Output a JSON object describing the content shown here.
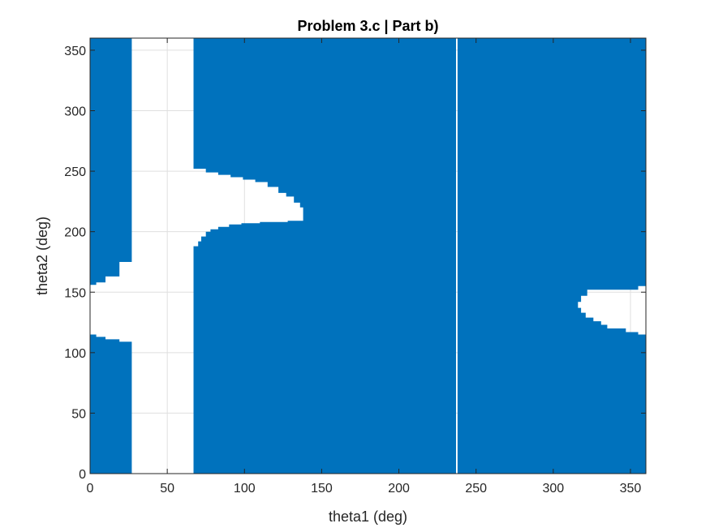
{
  "chart_data": {
    "type": "heatmap",
    "title": "Problem 3.c | Part b)",
    "xlabel": "theta1 (deg)",
    "ylabel": "theta2 (deg)",
    "xlim": [
      0,
      360
    ],
    "ylim": [
      0,
      360
    ],
    "xticks": [
      0,
      50,
      100,
      150,
      200,
      250,
      300,
      350
    ],
    "yticks": [
      0,
      50,
      100,
      150,
      200,
      250,
      300,
      350
    ],
    "xtick_labels": [
      "0",
      "50",
      "100",
      "150",
      "200",
      "250",
      "300",
      "350"
    ],
    "ytick_labels": [
      "0",
      "50",
      "100",
      "150",
      "200",
      "250",
      "300",
      "350"
    ],
    "grid": true,
    "fill_color": "#0072BD",
    "region_meaning": "filled cells = 1, white cells = 0",
    "filled_regions": [
      {
        "name": "left-lower",
        "points": [
          [
            0,
            0
          ],
          [
            27,
            0
          ],
          [
            27,
            109
          ],
          [
            19,
            109
          ],
          [
            19,
            111
          ],
          [
            10,
            111
          ],
          [
            10,
            113
          ],
          [
            4,
            113
          ],
          [
            4,
            115
          ],
          [
            0,
            115
          ]
        ]
      },
      {
        "name": "left-upper",
        "points": [
          [
            0,
            156
          ],
          [
            4,
            156
          ],
          [
            4,
            158
          ],
          [
            10,
            158
          ],
          [
            10,
            163
          ],
          [
            19,
            163
          ],
          [
            19,
            175
          ],
          [
            27,
            175
          ],
          [
            27,
            360
          ],
          [
            0,
            360
          ]
        ]
      },
      {
        "name": "main",
        "points": [
          [
            67,
            0
          ],
          [
            237,
            0
          ],
          [
            237,
            360
          ],
          [
            67,
            360
          ],
          [
            67,
            252
          ],
          [
            75,
            252
          ],
          [
            75,
            249
          ],
          [
            83,
            249
          ],
          [
            83,
            247
          ],
          [
            91,
            247
          ],
          [
            91,
            245
          ],
          [
            99,
            245
          ],
          [
            99,
            243
          ],
          [
            107,
            243
          ],
          [
            107,
            241
          ],
          [
            115,
            241
          ],
          [
            115,
            237
          ],
          [
            122,
            237
          ],
          [
            122,
            232
          ],
          [
            127,
            232
          ],
          [
            127,
            229
          ],
          [
            132,
            229
          ],
          [
            132,
            224
          ],
          [
            136,
            224
          ],
          [
            136,
            220
          ],
          [
            138,
            220
          ],
          [
            138,
            209
          ],
          [
            128,
            209
          ],
          [
            128,
            208
          ],
          [
            110,
            208
          ],
          [
            110,
            207
          ],
          [
            98,
            207
          ],
          [
            98,
            206
          ],
          [
            90,
            206
          ],
          [
            90,
            204
          ],
          [
            83,
            204
          ],
          [
            83,
            202
          ],
          [
            78,
            202
          ],
          [
            78,
            200
          ],
          [
            75,
            200
          ],
          [
            75,
            196
          ],
          [
            72,
            196
          ],
          [
            72,
            192
          ],
          [
            70,
            192
          ],
          [
            70,
            188
          ],
          [
            67,
            188
          ]
        ]
      },
      {
        "name": "right",
        "points": [
          [
            238,
            0
          ],
          [
            360,
            0
          ],
          [
            360,
            115
          ],
          [
            355,
            115
          ],
          [
            355,
            117
          ],
          [
            347,
            117
          ],
          [
            347,
            120
          ],
          [
            335,
            120
          ],
          [
            335,
            123
          ],
          [
            331,
            123
          ],
          [
            331,
            126
          ],
          [
            326,
            126
          ],
          [
            326,
            129
          ],
          [
            321,
            129
          ],
          [
            321,
            133
          ],
          [
            318,
            133
          ],
          [
            318,
            137
          ],
          [
            316,
            137
          ],
          [
            316,
            142
          ],
          [
            318,
            142
          ],
          [
            318,
            147
          ],
          [
            322,
            147
          ],
          [
            322,
            152
          ],
          [
            355,
            152
          ],
          [
            355,
            155
          ],
          [
            360,
            155
          ],
          [
            360,
            360
          ],
          [
            238,
            360
          ]
        ]
      }
    ]
  }
}
